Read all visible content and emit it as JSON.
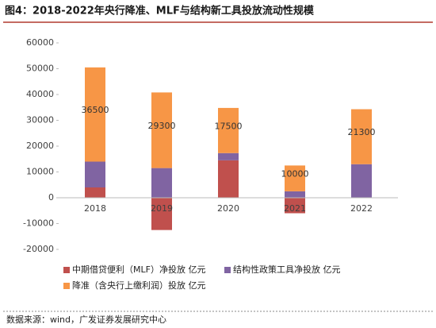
{
  "chart_data": {
    "type": "stacked_bar",
    "title": "图4：2018-2022年央行降准、MLF与结构新工具投放流动性规模",
    "source": "数据来源：wind，广发证券发展研究中心",
    "categories": [
      "2018",
      "2019",
      "2020",
      "2021",
      "2022"
    ],
    "series": [
      {
        "name": "中期借贷便利（MLF）净投放 亿元",
        "color": "#c0504d",
        "values": [
          4000,
          -12500,
          14500,
          -6000,
          0
        ]
      },
      {
        "name": "结构性政策工具净投放 亿元",
        "color": "#8064a2",
        "values": [
          10000,
          11500,
          2800,
          2500,
          13000
        ]
      },
      {
        "name": "降准（含央行上缴利润）投放 亿元",
        "color": "#f79646",
        "values": [
          36500,
          29300,
          17500,
          10000,
          21300
        ],
        "labels": true
      }
    ],
    "ylim": [
      -20000,
      60000
    ],
    "yticks": [
      -20000,
      -10000,
      0,
      10000,
      20000,
      30000,
      40000,
      50000,
      60000
    ],
    "grid": false
  }
}
